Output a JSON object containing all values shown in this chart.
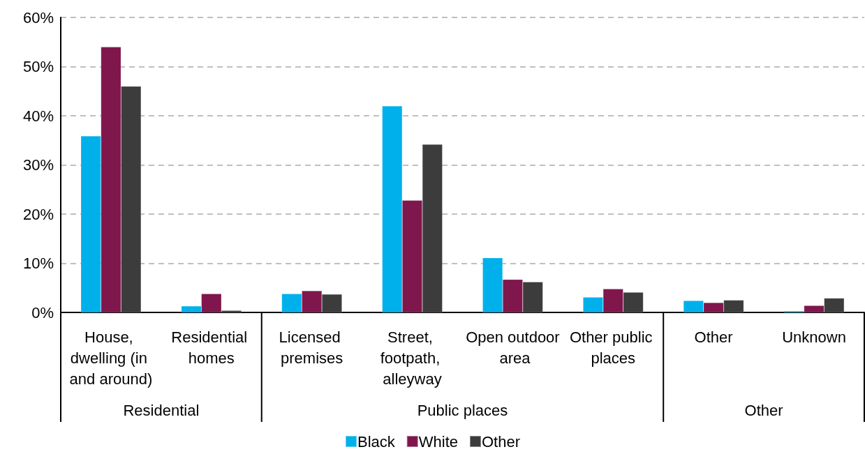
{
  "chart_data": {
    "type": "bar",
    "categories": [
      "House, dwelling (in and around)",
      "Residential homes",
      "Licensed premises",
      "Street, footpath, alleyway",
      "Open outdoor area",
      "Other public places",
      "Other",
      "Unknown"
    ],
    "series": [
      {
        "name": "Black",
        "color": "#00b0eb",
        "values": [
          35.9,
          1.3,
          3.8,
          42.0,
          11.1,
          3.1,
          2.4,
          0.3
        ]
      },
      {
        "name": "White",
        "color": "#7f164c",
        "values": [
          54.0,
          3.8,
          4.4,
          22.8,
          6.7,
          4.8,
          2.0,
          1.4
        ]
      },
      {
        "name": "Other",
        "color": "#3c3c3c",
        "values": [
          46.0,
          0.4,
          3.7,
          34.2,
          6.2,
          4.1,
          2.5,
          2.9
        ]
      }
    ],
    "annotations": [
      "Residential",
      "Public places",
      "Other"
    ],
    "ylim": [
      0,
      60
    ],
    "yticks": [
      {
        "value": 0,
        "label": "0%"
      },
      {
        "value": 10,
        "label": "10%"
      },
      {
        "value": 20,
        "label": "20%"
      },
      {
        "value": 30,
        "label": "30%"
      },
      {
        "value": 40,
        "label": "40%"
      },
      {
        "value": 50,
        "label": "50%"
      },
      {
        "value": 60,
        "label": "60%"
      }
    ],
    "grid": "y",
    "legend": "bottom"
  }
}
